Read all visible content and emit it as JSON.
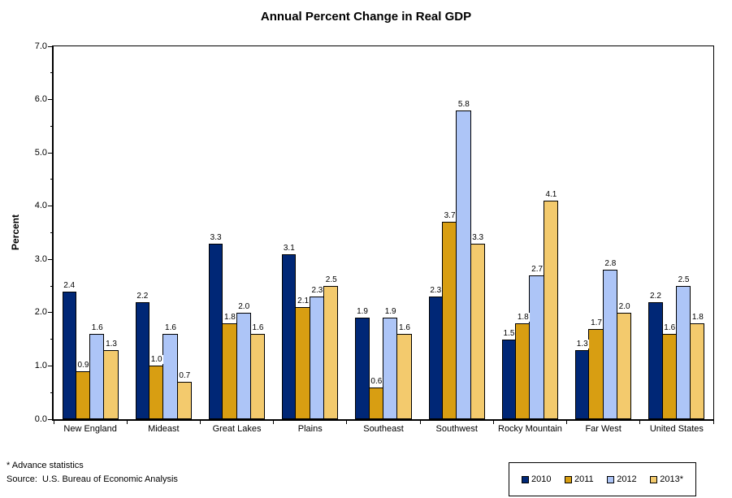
{
  "chart_data": {
    "type": "bar",
    "title": "Annual Percent Change in Real GDP",
    "ylabel": "Percent",
    "xlabel": "",
    "ylim": [
      0,
      7
    ],
    "ytick_interval": 1.0,
    "yminor_interval": 0.5,
    "ytick_labels": [
      "0.0",
      "1.0",
      "2.0",
      "3.0",
      "4.0",
      "5.0",
      "6.0",
      "7.0"
    ],
    "grid": false,
    "value_labels_shown": true,
    "legend_position": "bottom-right",
    "categories": [
      "New England",
      "Mideast",
      "Great Lakes",
      "Plains",
      "Southeast",
      "Southwest",
      "Rocky Mountain",
      "Far West",
      "United States"
    ],
    "series": [
      {
        "name": "2010",
        "color": "#002776",
        "values": [
          2.4,
          2.2,
          3.3,
          3.1,
          1.9,
          2.3,
          1.5,
          1.3,
          2.2
        ]
      },
      {
        "name": "2011",
        "color": "#D89E12",
        "values": [
          0.9,
          1.0,
          1.8,
          2.1,
          0.6,
          3.7,
          1.8,
          1.7,
          1.6
        ]
      },
      {
        "name": "2012",
        "color": "#ADC5F7",
        "values": [
          1.6,
          1.6,
          2.0,
          2.3,
          1.9,
          5.8,
          2.7,
          2.8,
          2.5
        ]
      },
      {
        "name": "2013*",
        "color": "#F3CA6D",
        "values": [
          1.3,
          0.7,
          1.6,
          2.5,
          1.6,
          3.3,
          4.1,
          2.0,
          1.8
        ]
      }
    ],
    "footnote": "* Advance statistics",
    "source": "Source:  U.S. Bureau of Economic Analysis"
  }
}
